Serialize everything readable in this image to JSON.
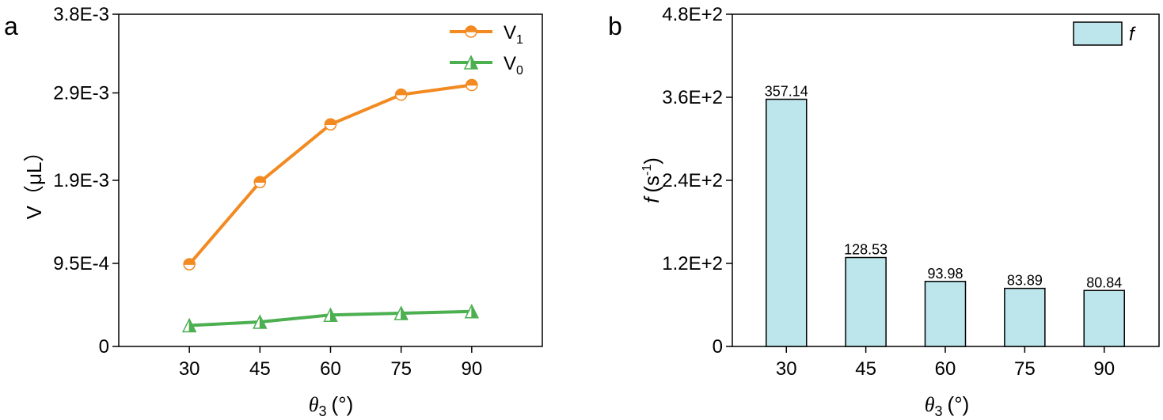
{
  "chart_data": [
    {
      "type": "line",
      "panel_label": "a",
      "ylabel_main": "V",
      "ylabel_unit": "（μL）",
      "xlabel_symbol": "θ",
      "xlabel_sub": "3",
      "xlabel_unit": "(°)",
      "x": [
        30,
        45,
        60,
        75,
        90
      ],
      "xticks": [
        "30",
        "45",
        "60",
        "75",
        "90"
      ],
      "ylim": [
        0,
        0.0038
      ],
      "yticks": [
        0,
        0.00095,
        0.0019,
        0.0029,
        0.0038
      ],
      "ytick_labels": [
        "0",
        "9.5E-4",
        "1.9E-3",
        "2.9E-3",
        "3.8E-3"
      ],
      "legend_position": "top-right",
      "series": [
        {
          "name": "V",
          "sub": "1",
          "color": "#F28A21",
          "marker": "half-circle",
          "values": [
            0.00094,
            0.00188,
            0.00254,
            0.00288,
            0.00299
          ]
        },
        {
          "name": "V",
          "sub": "0",
          "color": "#4CAF50",
          "marker": "half-triangle",
          "values": [
            0.00024,
            0.00028,
            0.00036,
            0.00038,
            0.0004
          ]
        }
      ]
    },
    {
      "type": "bar",
      "panel_label": "b",
      "ylabel_main": "f",
      "ylabel_unit": "(s",
      "ylabel_sup": "-1",
      "ylabel_close": ")",
      "xlabel_symbol": "θ",
      "xlabel_sub": "3",
      "xlabel_unit": "(°)",
      "categories": [
        "30",
        "45",
        "60",
        "75",
        "90"
      ],
      "values": [
        357.14,
        128.53,
        93.98,
        83.89,
        80.84
      ],
      "value_labels": [
        "357.14",
        "128.53",
        "93.98",
        "83.89",
        "80.84"
      ],
      "ylim": [
        0,
        480
      ],
      "yticks": [
        0,
        120,
        240,
        360,
        480
      ],
      "ytick_labels": [
        "0",
        "1.2E+2",
        "2.4E+2",
        "3.6E+2",
        "4.8E+2"
      ],
      "legend_position": "top-right",
      "legend_label": "f",
      "bar_color": "#BDE5EC",
      "edge_color": "#000000"
    }
  ]
}
